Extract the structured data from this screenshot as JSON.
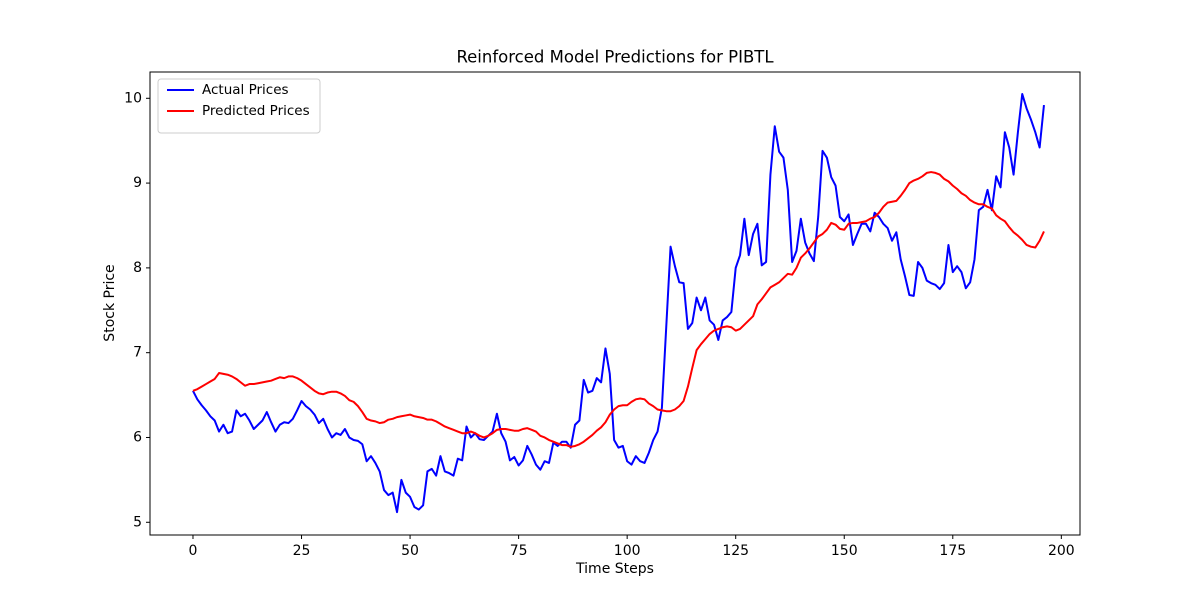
{
  "chart_data": {
    "type": "line",
    "title": "Reinforced Model Predictions for PIBTL",
    "xlabel": "Time Steps",
    "ylabel": "Stock Price",
    "x": [
      0,
      1,
      2,
      3,
      4,
      5,
      6,
      7,
      8,
      9,
      10,
      11,
      12,
      13,
      14,
      15,
      16,
      17,
      18,
      19,
      20,
      21,
      22,
      23,
      24,
      25,
      26,
      27,
      28,
      29,
      30,
      31,
      32,
      33,
      34,
      35,
      36,
      37,
      38,
      39,
      40,
      41,
      42,
      43,
      44,
      45,
      46,
      47,
      48,
      49,
      50,
      51,
      52,
      53,
      54,
      55,
      56,
      57,
      58,
      59,
      60,
      61,
      62,
      63,
      64,
      65,
      66,
      67,
      68,
      69,
      70,
      71,
      72,
      73,
      74,
      75,
      76,
      77,
      78,
      79,
      80,
      81,
      82,
      83,
      84,
      85,
      86,
      87,
      88,
      89,
      90,
      91,
      92,
      93,
      94,
      95,
      96,
      97,
      98,
      99,
      100,
      101,
      102,
      103,
      104,
      105,
      106,
      107,
      108,
      109,
      110,
      111,
      112,
      113,
      114,
      115,
      116,
      117,
      118,
      119,
      120,
      121,
      122,
      123,
      124,
      125,
      126,
      127,
      128,
      129,
      130,
      131,
      132,
      133,
      134,
      135,
      136,
      137,
      138,
      139,
      140,
      141,
      142,
      143,
      144,
      145,
      146,
      147,
      148,
      149,
      150,
      151,
      152,
      153,
      154,
      155,
      156,
      157,
      158,
      159,
      160,
      161,
      162,
      163,
      164,
      165,
      166,
      167,
      168,
      169,
      170,
      171,
      172,
      173,
      174,
      175,
      176,
      177,
      178,
      179,
      180,
      181,
      182,
      183,
      184,
      185,
      186,
      187,
      188,
      189,
      190,
      191,
      192,
      193,
      194,
      195,
      196
    ],
    "series": [
      {
        "name": "Actual Prices",
        "color": "#0000ff",
        "values": [
          6.55,
          6.45,
          6.38,
          6.32,
          6.25,
          6.2,
          6.07,
          6.15,
          6.05,
          6.07,
          6.32,
          6.25,
          6.28,
          6.2,
          6.1,
          6.15,
          6.2,
          6.3,
          6.18,
          6.07,
          6.15,
          6.18,
          6.17,
          6.22,
          6.32,
          6.43,
          6.37,
          6.33,
          6.27,
          6.17,
          6.22,
          6.1,
          6.0,
          6.05,
          6.03,
          6.1,
          6.0,
          5.97,
          5.96,
          5.92,
          5.72,
          5.78,
          5.7,
          5.6,
          5.38,
          5.32,
          5.35,
          5.12,
          5.5,
          5.35,
          5.3,
          5.18,
          5.15,
          5.2,
          5.6,
          5.63,
          5.55,
          5.78,
          5.6,
          5.58,
          5.55,
          5.75,
          5.73,
          6.13,
          6.0,
          6.05,
          5.98,
          5.97,
          6.02,
          6.07,
          6.28,
          6.05,
          5.95,
          5.73,
          5.77,
          5.67,
          5.73,
          5.9,
          5.8,
          5.68,
          5.62,
          5.72,
          5.7,
          5.94,
          5.9,
          5.95,
          5.95,
          5.88,
          6.15,
          6.2,
          6.68,
          6.53,
          6.55,
          6.7,
          6.65,
          7.05,
          6.75,
          5.97,
          5.88,
          5.9,
          5.72,
          5.68,
          5.78,
          5.72,
          5.7,
          5.82,
          5.97,
          6.07,
          6.35,
          7.3,
          8.25,
          8.02,
          7.83,
          7.82,
          7.28,
          7.35,
          7.65,
          7.5,
          7.65,
          7.38,
          7.33,
          7.15,
          7.38,
          7.42,
          7.48,
          8.0,
          8.15,
          8.58,
          8.15,
          8.4,
          8.52,
          8.03,
          8.07,
          9.1,
          9.67,
          9.37,
          9.3,
          8.92,
          8.07,
          8.2,
          8.58,
          8.3,
          8.17,
          8.08,
          8.6,
          9.38,
          9.3,
          9.07,
          8.97,
          8.6,
          8.55,
          8.63,
          8.27,
          8.4,
          8.52,
          8.52,
          8.43,
          8.65,
          8.6,
          8.52,
          8.47,
          8.32,
          8.42,
          8.1,
          7.9,
          7.68,
          7.67,
          8.07,
          8.0,
          7.85,
          7.82,
          7.8,
          7.75,
          7.82,
          8.27,
          7.95,
          8.02,
          7.95,
          7.76,
          7.83,
          8.1,
          8.68,
          8.72,
          8.92,
          8.68,
          9.08,
          8.95,
          9.6,
          9.42,
          9.1,
          9.6,
          10.05,
          9.88,
          9.75,
          9.6,
          9.42,
          9.92
        ]
      },
      {
        "name": "Predicted Prices",
        "color": "#ff0000",
        "values": [
          6.55,
          6.57,
          6.6,
          6.63,
          6.66,
          6.69,
          6.76,
          6.75,
          6.74,
          6.72,
          6.69,
          6.65,
          6.61,
          6.63,
          6.63,
          6.64,
          6.65,
          6.66,
          6.67,
          6.69,
          6.71,
          6.7,
          6.72,
          6.72,
          6.7,
          6.67,
          6.63,
          6.59,
          6.55,
          6.52,
          6.51,
          6.53,
          6.54,
          6.54,
          6.52,
          6.49,
          6.44,
          6.42,
          6.37,
          6.3,
          6.22,
          6.2,
          6.19,
          6.17,
          6.18,
          6.21,
          6.22,
          6.24,
          6.25,
          6.26,
          6.27,
          6.25,
          6.24,
          6.23,
          6.21,
          6.21,
          6.19,
          6.16,
          6.13,
          6.11,
          6.09,
          6.07,
          6.05,
          6.05,
          6.07,
          6.05,
          6.02,
          6.0,
          6.02,
          6.05,
          6.09,
          6.1,
          6.1,
          6.09,
          6.08,
          6.08,
          6.1,
          6.11,
          6.09,
          6.07,
          6.02,
          6.0,
          5.97,
          5.95,
          5.93,
          5.91,
          5.91,
          5.89,
          5.9,
          5.92,
          5.95,
          5.99,
          6.03,
          6.08,
          6.12,
          6.18,
          6.27,
          6.33,
          6.37,
          6.38,
          6.38,
          6.42,
          6.45,
          6.46,
          6.45,
          6.4,
          6.37,
          6.33,
          6.32,
          6.31,
          6.31,
          6.33,
          6.37,
          6.43,
          6.6,
          6.82,
          7.03,
          7.1,
          7.16,
          7.22,
          7.26,
          7.28,
          7.3,
          7.31,
          7.3,
          7.26,
          7.28,
          7.33,
          7.38,
          7.43,
          7.57,
          7.63,
          7.7,
          7.77,
          7.8,
          7.83,
          7.88,
          7.93,
          7.92,
          8.0,
          8.12,
          8.17,
          8.23,
          8.3,
          8.37,
          8.4,
          8.45,
          8.53,
          8.51,
          8.46,
          8.45,
          8.52,
          8.53,
          8.53,
          8.54,
          8.55,
          8.58,
          8.6,
          8.65,
          8.72,
          8.77,
          8.78,
          8.79,
          8.85,
          8.92,
          9.0,
          9.03,
          9.05,
          9.08,
          9.12,
          9.13,
          9.12,
          9.1,
          9.05,
          9.02,
          8.97,
          8.93,
          8.88,
          8.85,
          8.8,
          8.77,
          8.75,
          8.75,
          8.72,
          8.7,
          8.62,
          8.58,
          8.55,
          8.48,
          8.42,
          8.38,
          8.33,
          8.27,
          8.25,
          8.24,
          8.32,
          8.43
        ]
      }
    ],
    "xlim": [
      -9.9,
      204.3
    ],
    "xticks": [
      0,
      25,
      50,
      75,
      100,
      125,
      150,
      175,
      200
    ],
    "ylim": [
      4.85,
      10.31
    ],
    "yticks": [
      5,
      6,
      7,
      8,
      9,
      10
    ],
    "legend": "upper left"
  }
}
